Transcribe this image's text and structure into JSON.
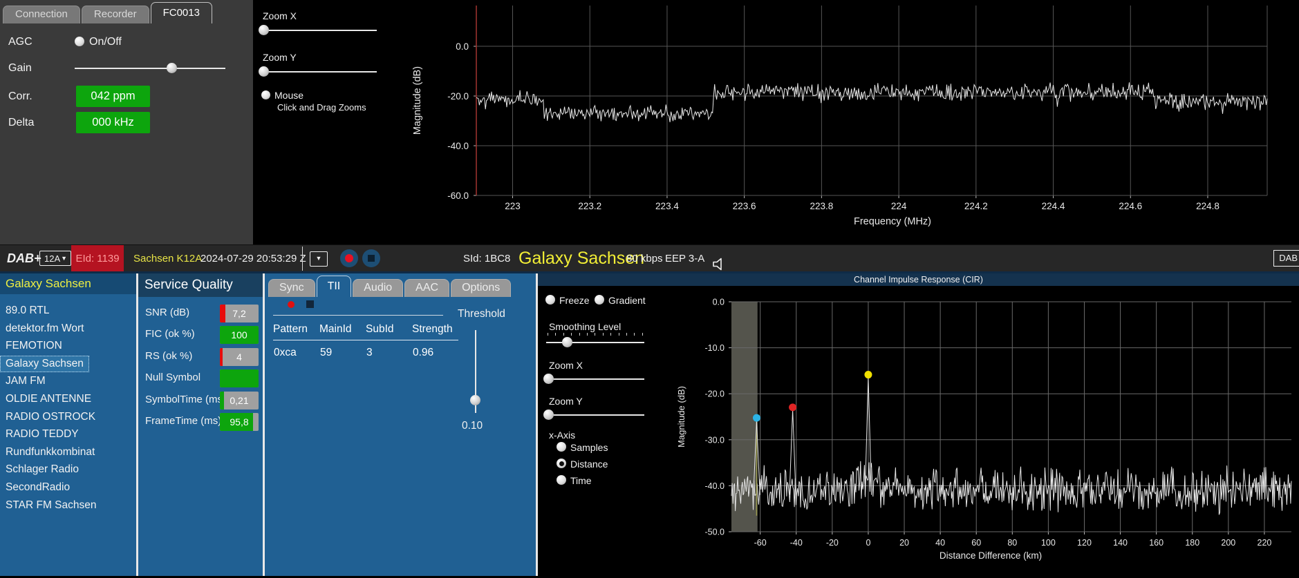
{
  "colors": {
    "green_badge": "#0da50d",
    "red_fill": "#e80c0c",
    "badge_track": "#a0a0a0",
    "red_badge_bg": "#b51321",
    "red_badge_text": "#ff9b9b",
    "ensemble_yellow": "#e8e446",
    "service_yellow": "#f2ee35",
    "panel_blue": "#206093",
    "header_blue": "#164a73",
    "record_red": "#e81123",
    "button_blue": "#1d4e74"
  },
  "device_panel": {
    "tabs": [
      {
        "label": "Connection",
        "active": false
      },
      {
        "label": "Recorder",
        "active": false
      },
      {
        "label": "FC0013",
        "active": true
      }
    ],
    "agc_label": "AGC",
    "agc_option": "On/Off",
    "gain_label": "Gain",
    "corr_label": "Corr.",
    "corr_value": "042 ppm",
    "delta_label": "Delta",
    "delta_value": "000 kHz"
  },
  "spectrum_controls": {
    "zoom_x_label": "Zoom X",
    "zoom_y_label": "Zoom Y",
    "mouse_label": "Mouse",
    "mouse_sub": "Click and Drag Zooms"
  },
  "status_bar": {
    "mode": "DAB+",
    "channel": "12A",
    "eid": "EId: 1139",
    "ensemble": "Sachsen K12A",
    "datetime": "2024-07-29  20:53:29 Z",
    "sid": "SId: 1BC8",
    "service": "Galaxy Sachsen",
    "bitrate": "80 kbps",
    "protection": "EEP 3-A",
    "corner": "DAB"
  },
  "station_list": {
    "header": "Galaxy Sachsen",
    "selected": "Galaxy Sachsen",
    "items": [
      "89.0 RTL",
      "detektor.fm Wort",
      "FEMOTION",
      "Galaxy Sachsen",
      "JAM FM",
      "OLDIE ANTENNE",
      "RADIO OSTROCK",
      "RADIO TEDDY",
      "Rundfunkkombinat",
      "Schlager Radio",
      "SecondRadio",
      "STAR FM Sachsen"
    ]
  },
  "service_quality": {
    "header": "Service Quality",
    "rows": [
      {
        "label": "SNR (dB)",
        "value": "7,2",
        "fill_pct": 14,
        "fill": "#e80c0c"
      },
      {
        "label": "FIC (ok %)",
        "value": "100",
        "fill_pct": 100,
        "fill": "#0da50d"
      },
      {
        "label": "RS (ok %)",
        "value": "4",
        "fill_pct": 7,
        "fill": "#e80c0c"
      },
      {
        "label": "Null Symbol",
        "value": "",
        "fill_pct": 100,
        "fill": "#0da50d"
      },
      {
        "label": "SymbolTime (ms)",
        "value": "0,21",
        "fill_pct": 11,
        "fill": "#0da50d"
      },
      {
        "label": "FrameTime (ms)",
        "value": "95,8",
        "fill_pct": 86,
        "fill": "#0da50d"
      }
    ]
  },
  "tii_panel": {
    "tabs": [
      "Sync",
      "TII",
      "Audio",
      "AAC",
      "Options"
    ],
    "active_tab": "TII",
    "table": {
      "headers": [
        "Pattern",
        "MainId",
        "SubId",
        "Strength"
      ],
      "rows": [
        [
          "0xca",
          "59",
          "3",
          "0.96"
        ]
      ]
    },
    "threshold_label": "Threshold",
    "threshold_value": "0.10"
  },
  "cir_panel": {
    "freeze_label": "Freeze",
    "gradient_label": "Gradient",
    "smoothing_label": "Smoothing Level",
    "zoom_x_label": "Zoom X",
    "zoom_y_label": "Zoom Y",
    "x_axis_label": "x-Axis",
    "x_axis_options": [
      "Samples",
      "Distance",
      "Time"
    ],
    "x_axis_selected": "Distance"
  },
  "sliders": {
    "gain": 64,
    "spec_zoom_x": 2,
    "spec_zoom_y": 2,
    "cir_smoothing": 21,
    "cir_zoom_x": 2,
    "cir_zoom_y": 2,
    "tii_threshold": 84
  },
  "chart_data": [
    {
      "id": "spectrum",
      "type": "line",
      "title": "",
      "xlabel": "Frequency (MHz)",
      "ylabel": "Magnitude (dB)",
      "xlim": [
        222.906,
        224.954
      ],
      "ylim": [
        -60,
        16.4
      ],
      "xtick_vals": [
        223,
        223.2,
        223.4,
        223.6,
        223.8,
        224,
        224.2,
        224.4,
        224.6,
        224.8
      ],
      "xtick_labels": [
        "223",
        "223.2",
        "223.4",
        "223.6",
        "223.8",
        "224",
        "224.2",
        "224.4",
        "224.6",
        "224.8"
      ],
      "ytick_vals": [
        0,
        -20,
        -40,
        -60
      ],
      "ytick_labels": [
        "0.0",
        "-20.0",
        "-40.0",
        "-60.0"
      ],
      "grid": true,
      "legend": "none",
      "trace_color": "#e8e8e8",
      "left_marker_color": "#a23430",
      "segments": [
        [
          222.906,
          223.08,
          -21.5,
          2.3
        ],
        [
          223.08,
          223.52,
          -27.0,
          2.3
        ],
        [
          223.52,
          224.66,
          -18.5,
          2.5
        ],
        [
          224.66,
          224.954,
          -22.5,
          2.8
        ]
      ]
    },
    {
      "id": "cir",
      "type": "line",
      "title": "Channel Impulse Response (CIR)",
      "xlabel": "Distance Difference (km)",
      "ylabel": "Magnitude (dB)",
      "xlim": [
        -76,
        235
      ],
      "ylim": [
        -50,
        0
      ],
      "xtick_vals": [
        -60,
        -40,
        -20,
        0,
        20,
        40,
        60,
        80,
        100,
        120,
        140,
        160,
        180,
        200,
        220
      ],
      "xtick_labels": [
        "-60",
        "-40",
        "-20",
        "0",
        "20",
        "40",
        "60",
        "80",
        "100",
        "120",
        "140",
        "160",
        "180",
        "200",
        "220"
      ],
      "ytick_vals": [
        0,
        -10,
        -20,
        -30,
        -40,
        -50
      ],
      "ytick_labels": [
        "0.0",
        "-10.0",
        "-20.0",
        "-30.0",
        "-40.0",
        "-50.0"
      ],
      "grid": true,
      "legend": "none",
      "noise_floor": -41,
      "noise_amp": 3.2,
      "shaded_region": [
        -76,
        -61.5
      ],
      "shaded_color": "#54544c",
      "trace_color": "#e8e8e8",
      "peaks": [
        {
          "x": -62,
          "y": -25.7,
          "color": "#2bb3e6",
          "guide_line": true,
          "guide_color": "#9a9a50"
        },
        {
          "x": -42,
          "y": -23.4,
          "color": "#e02424"
        },
        {
          "x": 0,
          "y": -16.3,
          "color": "#f0e000"
        }
      ]
    }
  ]
}
